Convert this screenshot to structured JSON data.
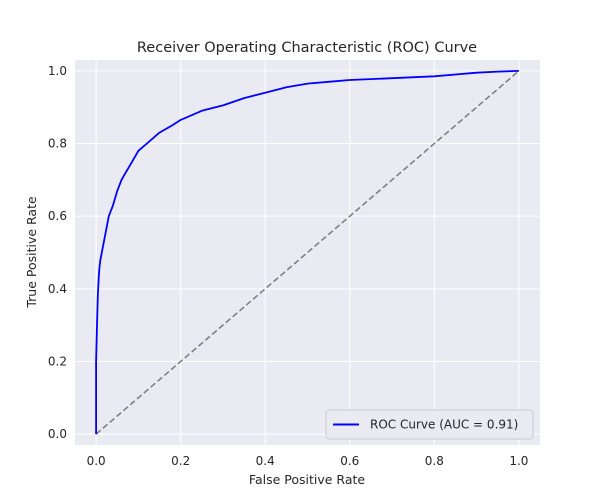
{
  "chart_data": {
    "type": "line",
    "title": "Receiver Operating Characteristic (ROC) Curve",
    "xlabel": "False Positive Rate",
    "ylabel": "True Positive Rate",
    "xlim": [
      -0.05,
      1.05
    ],
    "ylim": [
      -0.03,
      1.03
    ],
    "xticks": [
      0.0,
      0.2,
      0.4,
      0.6,
      0.8,
      1.0
    ],
    "yticks": [
      0.0,
      0.2,
      0.4,
      0.6,
      0.8,
      1.0
    ],
    "xtick_labels": [
      "0.0",
      "0.2",
      "0.4",
      "0.6",
      "0.8",
      "1.0"
    ],
    "ytick_labels": [
      "0.0",
      "0.2",
      "0.4",
      "0.6",
      "0.8",
      "1.0"
    ],
    "grid": true,
    "legend_position": "bottom-right",
    "series": [
      {
        "name": "ROC Curve (AUC = 0.91)",
        "color": "#0000FF",
        "style": "solid",
        "x": [
          0.0,
          0.0,
          0.002,
          0.004,
          0.006,
          0.008,
          0.01,
          0.015,
          0.02,
          0.025,
          0.03,
          0.04,
          0.05,
          0.06,
          0.07,
          0.08,
          0.1,
          0.12,
          0.15,
          0.18,
          0.2,
          0.25,
          0.3,
          0.35,
          0.4,
          0.45,
          0.5,
          0.55,
          0.6,
          0.7,
          0.8,
          0.85,
          0.9,
          0.95,
          1.0
        ],
        "y": [
          0.0,
          0.2,
          0.3,
          0.38,
          0.43,
          0.46,
          0.48,
          0.51,
          0.54,
          0.57,
          0.6,
          0.63,
          0.67,
          0.7,
          0.72,
          0.74,
          0.78,
          0.8,
          0.83,
          0.85,
          0.865,
          0.89,
          0.905,
          0.925,
          0.94,
          0.955,
          0.965,
          0.97,
          0.975,
          0.98,
          0.985,
          0.99,
          0.995,
          0.998,
          1.0
        ]
      },
      {
        "name": "",
        "color": "#808080",
        "style": "dashed",
        "x": [
          0.0,
          1.0
        ],
        "y": [
          0.0,
          1.0
        ]
      }
    ],
    "legend": [
      {
        "label": "ROC Curve (AUC = 0.91)",
        "color": "#0000FF"
      }
    ]
  }
}
